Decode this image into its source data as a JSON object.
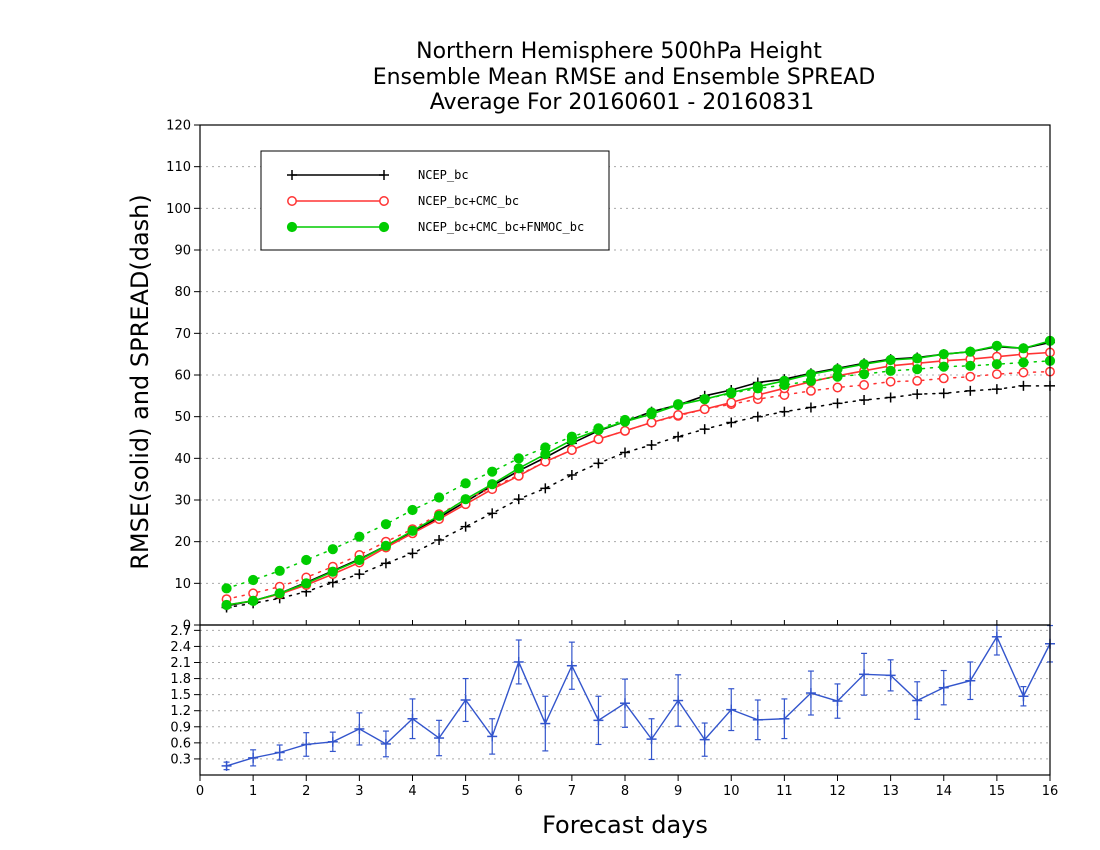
{
  "chart_data": [
    {
      "type": "line",
      "title_lines": [
        "Northern Hemisphere 500hPa Height",
        "Ensemble Mean RMSE and Ensemble SPREAD",
        "Average For 20160601 - 20160831"
      ],
      "xlabel": "Forecast days",
      "ylabel": "RMSE(solid) and SPREAD(dash)",
      "xlim": [
        0,
        16
      ],
      "ylim": [
        0,
        120
      ],
      "xticks": [
        "0",
        "1",
        "2",
        "3",
        "4",
        "5",
        "6",
        "7",
        "8",
        "9",
        "10",
        "11",
        "12",
        "13",
        "14",
        "15",
        "16"
      ],
      "yticks": [
        "0",
        "10",
        "20",
        "30",
        "40",
        "50",
        "60",
        "70",
        "80",
        "90",
        "100",
        "110",
        "120"
      ],
      "grid": true,
      "legend_position": "top-left",
      "x": [
        0.5,
        1,
        1.5,
        2,
        2.5,
        3,
        3.5,
        4,
        4.5,
        5,
        5.5,
        6,
        6.5,
        7,
        7.5,
        8,
        8.5,
        9,
        9.5,
        10,
        10.5,
        11,
        11.5,
        12,
        12.5,
        13,
        13.5,
        14,
        14.5,
        15,
        15.5,
        16
      ],
      "series": [
        {
          "name": "NCEP_bc",
          "color": "#000000",
          "marker": "plus",
          "rmse": [
            4.6,
            5.8,
            7.6,
            10.2,
            13.0,
            15.8,
            19.0,
            22.4,
            25.8,
            29.6,
            33.4,
            37.0,
            40.2,
            43.6,
            46.6,
            48.8,
            51.2,
            52.8,
            55.0,
            56.4,
            58.2,
            59.0,
            60.4,
            61.6,
            62.8,
            63.8,
            64.2,
            65.0,
            65.6,
            66.8,
            66.4,
            67.8
          ],
          "spread": [
            4.2,
            5.2,
            6.4,
            8.0,
            10.2,
            12.2,
            14.8,
            17.2,
            20.4,
            23.6,
            26.8,
            30.2,
            32.8,
            36.0,
            38.8,
            41.4,
            43.2,
            45.2,
            47.0,
            48.6,
            50.0,
            51.2,
            52.2,
            53.2,
            54.0,
            54.6,
            55.4,
            55.6,
            56.2,
            56.6,
            57.4,
            57.4
          ]
        },
        {
          "name": "NCEP_bc+CMC_bc",
          "color": "#ff3333",
          "marker": "circle-open",
          "rmse": [
            4.8,
            5.8,
            7.4,
            9.6,
            12.2,
            15.0,
            18.6,
            22.0,
            25.4,
            29.0,
            32.6,
            35.8,
            39.2,
            42.0,
            44.6,
            46.6,
            48.6,
            50.4,
            51.8,
            53.4,
            55.2,
            56.8,
            58.4,
            59.8,
            61.0,
            62.2,
            62.8,
            63.4,
            63.8,
            64.4,
            65.0,
            65.4
          ],
          "spread": [
            6.2,
            7.6,
            9.2,
            11.4,
            14.0,
            16.8,
            20.0,
            23.0,
            26.6,
            30.0,
            33.0,
            36.0,
            39.2,
            42.0,
            44.6,
            46.6,
            48.6,
            50.2,
            51.8,
            53.0,
            54.2,
            55.2,
            56.2,
            57.0,
            57.6,
            58.4,
            58.6,
            59.2,
            59.6,
            60.2,
            60.6,
            60.8
          ]
        },
        {
          "name": "NCEP_bc+CMC_bc+FNMOC_bc",
          "color": "#00cc00",
          "marker": "circle-filled",
          "rmse": [
            4.8,
            5.8,
            7.6,
            10.0,
            12.8,
            15.6,
            19.0,
            22.6,
            26.2,
            30.2,
            33.8,
            37.6,
            41.0,
            44.4,
            46.8,
            48.8,
            50.6,
            52.8,
            54.2,
            55.8,
            57.2,
            58.6,
            60.2,
            61.4,
            62.6,
            63.6,
            64.0,
            65.0,
            65.6,
            67.0,
            66.4,
            68.2
          ],
          "spread": [
            8.8,
            10.8,
            13.0,
            15.6,
            18.2,
            21.2,
            24.2,
            27.6,
            30.6,
            34.0,
            36.8,
            40.0,
            42.6,
            45.2,
            47.2,
            49.2,
            51.0,
            53.0,
            54.2,
            55.6,
            56.8,
            57.6,
            58.6,
            59.6,
            60.2,
            61.0,
            61.4,
            62.0,
            62.2,
            62.6,
            63.0,
            63.4
          ]
        }
      ]
    },
    {
      "type": "line",
      "xlim": [
        0,
        16
      ],
      "ylim": [
        0,
        2.8
      ],
      "yticks": [
        "0.3",
        "0.6",
        "0.9",
        "1.2",
        "1.5",
        "1.8",
        "2.1",
        "2.4",
        "2.7"
      ],
      "grid": true,
      "x": [
        0.5,
        1,
        1.5,
        2,
        2.5,
        3,
        3.5,
        4,
        4.5,
        5,
        5.5,
        6,
        6.5,
        7,
        7.5,
        8,
        8.5,
        9,
        9.5,
        10,
        10.5,
        11,
        11.5,
        12,
        12.5,
        13,
        13.5,
        14,
        14.5,
        15,
        15.5,
        16
      ],
      "series": [
        {
          "color": "#3355cc",
          "values": [
            0.17,
            0.32,
            0.42,
            0.57,
            0.62,
            0.86,
            0.58,
            1.05,
            0.69,
            1.4,
            0.72,
            2.11,
            0.96,
            2.04,
            1.02,
            1.34,
            0.67,
            1.39,
            0.66,
            1.22,
            1.03,
            1.05,
            1.53,
            1.38,
            1.88,
            1.86,
            1.39,
            1.63,
            1.76,
            2.58,
            1.47,
            2.45
          ],
          "error": [
            0.07,
            0.15,
            0.14,
            0.22,
            0.18,
            0.3,
            0.24,
            0.37,
            0.33,
            0.4,
            0.33,
            0.41,
            0.51,
            0.44,
            0.45,
            0.45,
            0.38,
            0.48,
            0.31,
            0.39,
            0.37,
            0.37,
            0.41,
            0.32,
            0.39,
            0.29,
            0.35,
            0.32,
            0.35,
            0.34,
            0.18,
            0.34
          ]
        }
      ]
    }
  ]
}
